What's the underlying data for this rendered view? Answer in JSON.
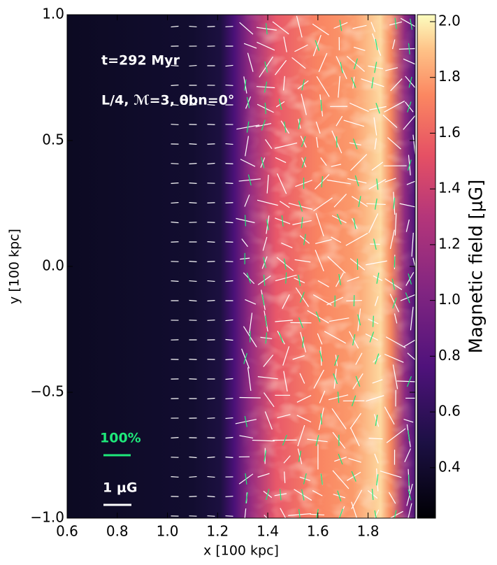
{
  "chart_data": {
    "type": "heatmap",
    "annotations": [
      "t=292 Myr",
      "L/4, ℳ=3, θbn=0°",
      "100%",
      "1 μG"
    ],
    "xlabel": "x [100 kpc]",
    "ylabel": "y [100 kpc]",
    "xlim": [
      0.6,
      1.988
    ],
    "ylim": [
      -1,
      1
    ],
    "xticks": [
      0.6,
      0.8,
      {
        "value": 1,
        "label": "1.0"
      },
      1.2,
      1.4,
      1.6,
      1.8
    ],
    "yticks": [
      {
        "value": -1,
        "label": "−1.0"
      },
      {
        "value": -0.5,
        "label": "−0.5"
      },
      {
        "value": 0,
        "label": "0.0"
      },
      {
        "value": 0.5,
        "label": "0.5"
      },
      {
        "value": 1,
        "label": "1.0"
      }
    ],
    "colorbar": {
      "label": "Magnetic field [μG]",
      "colormap": "magma",
      "clim": [
        0.219,
        2.025
      ],
      "ticks": [
        0.4,
        0.6,
        0.8,
        {
          "value": 1,
          "label": "1.0"
        },
        1.2,
        1.4,
        1.6,
        1.8,
        {
          "value": 2,
          "label": "2.0"
        }
      ]
    }
  }
}
